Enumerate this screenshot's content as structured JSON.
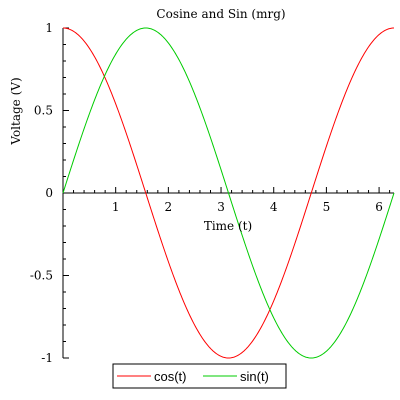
{
  "chart_data": {
    "type": "line",
    "title": "Cosine and Sin (mrg)",
    "xlabel": "Time (t)",
    "ylabel": "Voltage (V)",
    "xlim": [
      0,
      6.2832
    ],
    "ylim": [
      -1,
      1
    ],
    "x_ticks": [
      1,
      2,
      3,
      4,
      5,
      6
    ],
    "y_ticks": [
      -1,
      -0.5,
      0,
      0.5,
      1
    ],
    "x_tick_labels": [
      "1",
      "2",
      "3",
      "4",
      "5",
      "6"
    ],
    "y_tick_labels": [
      "-1",
      "-0.5",
      "0",
      "0.5",
      "1"
    ],
    "grid": false,
    "legend_position": "bottom-center",
    "series": [
      {
        "name": "cos(t)",
        "color": "#ff0000",
        "function": "cos",
        "x": [
          0,
          0.5,
          1,
          1.5708,
          2,
          2.5,
          3,
          3.1416,
          3.5,
          4,
          4.5,
          4.7124,
          5,
          5.5,
          6,
          6.2832
        ],
        "values": [
          1,
          0.878,
          0.54,
          0,
          -0.416,
          -0.801,
          -0.99,
          -1,
          -0.936,
          -0.654,
          -0.211,
          0,
          0.284,
          0.709,
          0.96,
          1
        ]
      },
      {
        "name": "sin(t)",
        "color": "#00cc00",
        "function": "sin",
        "x": [
          0,
          0.5,
          1,
          1.5708,
          2,
          2.5,
          3,
          3.1416,
          3.5,
          4,
          4.5,
          4.7124,
          5,
          5.5,
          6,
          6.2832
        ],
        "values": [
          0,
          0.479,
          0.841,
          1,
          0.909,
          0.598,
          0.141,
          0,
          -0.351,
          -0.757,
          -0.978,
          -1,
          -0.959,
          -0.706,
          -0.279,
          0
        ]
      }
    ]
  }
}
